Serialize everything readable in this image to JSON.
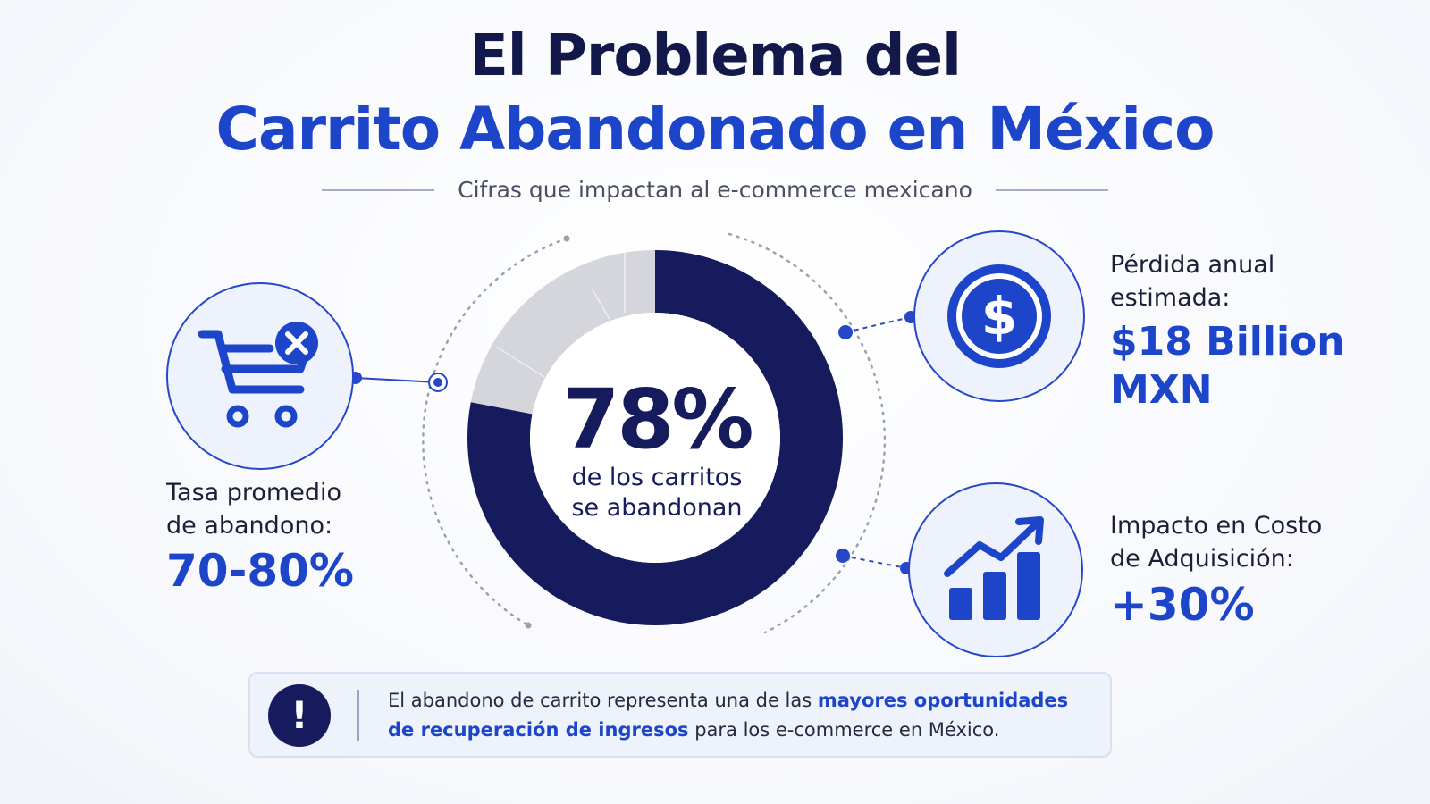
{
  "header": {
    "title_line1": "El Problema del",
    "title_line2": "Carrito Abandonado en México",
    "subtitle": "Cifras que impactan al e-commerce mexicano"
  },
  "center": {
    "percent": "78%",
    "caption_line1": "de los carritos",
    "caption_line2": "se abandonan",
    "fill_fraction": 0.78
  },
  "left_stat": {
    "icon": "cart-x-icon",
    "label_line1": "Tasa promedio",
    "label_line2": "de abandono:",
    "value": "70-80%"
  },
  "right_top_stat": {
    "icon": "dollar-coin-icon",
    "label_line1": "Pérdida anual",
    "label_line2": "estimada:",
    "value_line1": "$18 Billion",
    "value_line2": "MXN"
  },
  "right_bottom_stat": {
    "icon": "growth-chart-icon",
    "label_line1": "Impacto en Costo",
    "label_line2": "de Adquisición:",
    "value": "+30%"
  },
  "callout": {
    "icon": "exclamation-icon",
    "icon_glyph": "!",
    "text_part1": "El abandono de carrito representa una de las ",
    "text_highlight": "mayores oportunidades de recuperación de ingresos",
    "text_part2": " para los e-commerce en México."
  },
  "colors": {
    "navy": "#151b5c",
    "blue": "#1c45c9",
    "gray_ring": "#d5d6dc"
  }
}
